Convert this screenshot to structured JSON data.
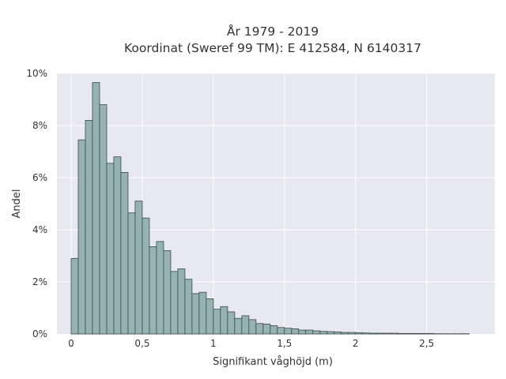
{
  "chart_data": {
    "type": "bar",
    "title_lines": [
      "År 1979 - 2019",
      "Koordinat (Sweref 99 TM): E 412584, N 6140317"
    ],
    "xlabel": "Signifikant våghöjd (m)",
    "ylabel": "Andel",
    "xlim": [
      -0.1,
      2.98
    ],
    "ylim": [
      0,
      10
    ],
    "x_ticks": [
      0,
      0.5,
      1,
      1.5,
      2,
      2.5
    ],
    "x_tick_labels": [
      "0",
      "0,5",
      "1",
      "1,5",
      "2",
      "2,5"
    ],
    "y_ticks": [
      0,
      2,
      4,
      6,
      8,
      10
    ],
    "y_tick_labels": [
      "0%",
      "2%",
      "4%",
      "6%",
      "8%",
      "10%"
    ],
    "bin_start": 0,
    "bin_width": 0.05,
    "values": [
      2.9,
      7.45,
      8.2,
      9.65,
      8.8,
      6.55,
      6.8,
      6.2,
      4.65,
      5.1,
      4.45,
      3.35,
      3.55,
      3.2,
      2.4,
      2.5,
      2.1,
      1.55,
      1.6,
      1.35,
      0.95,
      1.05,
      0.85,
      0.6,
      0.7,
      0.55,
      0.4,
      0.38,
      0.32,
      0.25,
      0.22,
      0.2,
      0.15,
      0.15,
      0.12,
      0.1,
      0.09,
      0.08,
      0.06,
      0.06,
      0.05,
      0.04,
      0.03,
      0.03,
      0.03,
      0.03,
      0.02,
      0.02,
      0.02,
      0.02,
      0.02,
      0.01,
      0.01,
      0.01,
      0.01,
      0.01
    ],
    "unit": "%",
    "grid": true,
    "colors": {
      "bar": "#96b3b1",
      "bar_edge": "#3a4a48",
      "plot_bg": "#e8e8f0",
      "grid": "#ffffff"
    }
  }
}
